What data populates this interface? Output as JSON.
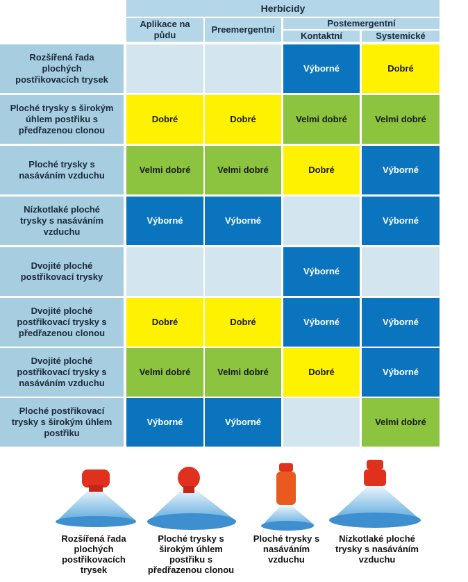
{
  "table": {
    "group_header": "Herbicidy",
    "columns": [
      {
        "label": "Aplikace na půdu"
      },
      {
        "label": "Preemergentní"
      },
      {
        "label": "Postemergentní",
        "sub": [
          "Kontaktní",
          "Systemické"
        ]
      }
    ],
    "rating_colors": {
      "Výborné": "#0a74bf",
      "Dobré": "#fff200",
      "Velmi dobré": "#8cc43f"
    },
    "rating_text_colors": {
      "Výborné": "#ffffff",
      "Dobré": "#1a1a1a",
      "Velmi dobré": "#1a1a1a"
    },
    "empty_color": "#d3e6f0",
    "rows": [
      {
        "label": "Rozšířená řada plochých postřikovacích trysek",
        "cells": [
          null,
          null,
          "Výborné",
          "Dobré"
        ]
      },
      {
        "label": "Ploché trysky s širokým úhlem postřiku s předřazenou clonou",
        "cells": [
          "Dobré",
          "Dobré",
          "Velmi dobré",
          "Velmi dobré"
        ]
      },
      {
        "label": "Ploché trysky s nasáváním vzduchu",
        "cells": [
          "Velmi dobré",
          "Velmi dobré",
          "Dobré",
          "Výborné"
        ]
      },
      {
        "label": "Nízkotlaké ploché trysky s nasáváním vzduchu",
        "cells": [
          "Výborné",
          "Výborné",
          null,
          "Výborné"
        ]
      },
      {
        "label": "Dvojité ploché postřikovací trysky",
        "cells": [
          null,
          null,
          "Výborné",
          null
        ]
      },
      {
        "label": "Dvojité ploché postřikovací trysky s předřazenou clonou",
        "cells": [
          "Dobré",
          "Dobré",
          "Výborné",
          "Výborné"
        ]
      },
      {
        "label": "Dvojité ploché postřikovací trysky s nasáváním vzduchu",
        "cells": [
          "Velmi dobré",
          "Velmi dobré",
          "Dobré",
          "Výborné"
        ]
      },
      {
        "label": "Ploché postřikovací trysky s širokým úhlem postřiku",
        "cells": [
          "Výborné",
          "Výborné",
          null,
          "Velmi dobré"
        ]
      }
    ]
  },
  "nozzles": [
    {
      "caption": "Rozšířená řada plochých postřikovacích trysek"
    },
    {
      "caption": "Ploché trysky s širokým úhlem postřiku s předřazenou clonou"
    },
    {
      "caption": "Ploché trysky s nasáváním vzduchu"
    },
    {
      "caption": "Nízkotlaké ploché trysky s nasáváním vzduchu"
    }
  ]
}
